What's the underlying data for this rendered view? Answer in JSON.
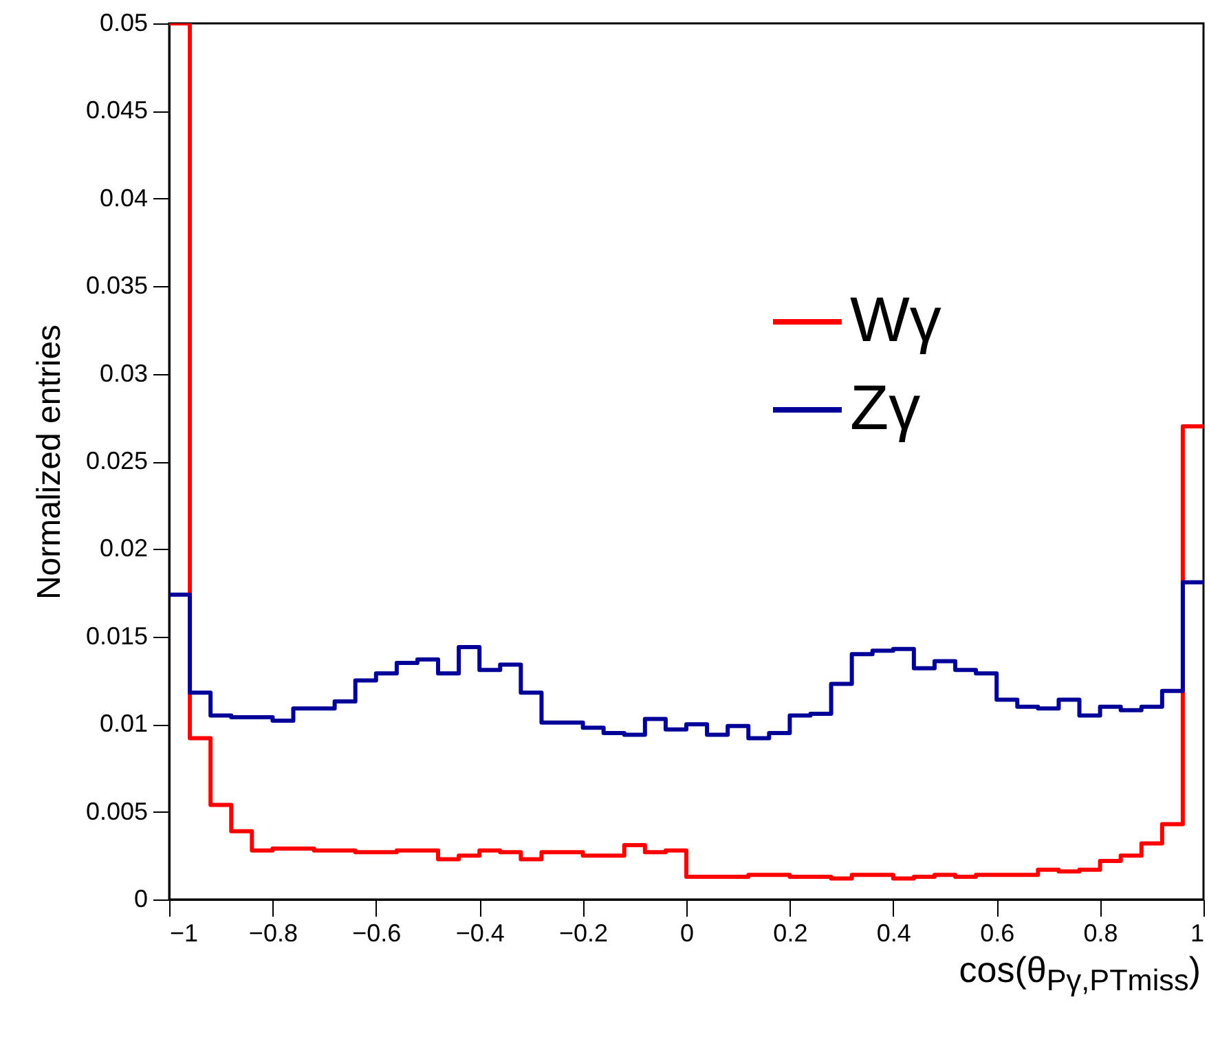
{
  "chart_data": {
    "type": "histogram",
    "xlabel": "cos(θ$_{Pγ,PTmiss}$)",
    "ylabel": "Normalized entries",
    "bins": [
      -1,
      -0.96,
      -0.92,
      -0.88,
      -0.84,
      -0.8,
      -0.76,
      -0.72,
      -0.68,
      -0.64,
      -0.6,
      -0.56,
      -0.52,
      -0.48,
      -0.44,
      -0.4,
      -0.36,
      -0.32,
      -0.28,
      -0.24,
      -0.2,
      -0.16,
      -0.12,
      -0.08,
      -0.04,
      0,
      0.04,
      0.08,
      0.12,
      0.16,
      0.2,
      0.24,
      0.28,
      0.32,
      0.36,
      0.4,
      0.44,
      0.48,
      0.52,
      0.56,
      0.6,
      0.64,
      0.68,
      0.72,
      0.76,
      0.8,
      0.84,
      0.88,
      0.92,
      0.96,
      1
    ],
    "series": [
      {
        "name": "Wγ",
        "color": "#ff0000",
        "values": [
          0.05,
          0.0092,
          0.0054,
          0.0039,
          0.0028,
          0.0029,
          0.0029,
          0.0028,
          0.0028,
          0.0027,
          0.0027,
          0.0028,
          0.0028,
          0.0023,
          0.0025,
          0.0028,
          0.0027,
          0.0023,
          0.0027,
          0.0027,
          0.0025,
          0.0025,
          0.0031,
          0.0027,
          0.0028,
          0.0013,
          0.0013,
          0.0013,
          0.0014,
          0.0014,
          0.0013,
          0.0013,
          0.0012,
          0.0014,
          0.0014,
          0.0012,
          0.0013,
          0.0014,
          0.0013,
          0.0014,
          0.0014,
          0.0014,
          0.0017,
          0.0016,
          0.0017,
          0.0022,
          0.0025,
          0.0032,
          0.0043,
          0.027
        ]
      },
      {
        "name": "Zγ",
        "color": "#000099",
        "values": [
          0.0174,
          0.0118,
          0.0105,
          0.0104,
          0.0104,
          0.0102,
          0.0109,
          0.0109,
          0.0113,
          0.0125,
          0.0129,
          0.0135,
          0.0137,
          0.0129,
          0.0144,
          0.0131,
          0.0134,
          0.0118,
          0.0101,
          0.0101,
          0.0098,
          0.0095,
          0.0094,
          0.0103,
          0.0097,
          0.01,
          0.0094,
          0.0099,
          0.0092,
          0.0095,
          0.0105,
          0.0106,
          0.0123,
          0.014,
          0.0142,
          0.0143,
          0.0132,
          0.0136,
          0.0131,
          0.0129,
          0.0114,
          0.011,
          0.0109,
          0.0114,
          0.0105,
          0.011,
          0.0108,
          0.011,
          0.0119,
          0.0181
        ]
      }
    ],
    "xlim": [
      -1,
      1
    ],
    "xticks": [
      -1,
      -0.8,
      -0.6,
      -0.4,
      -0.2,
      0,
      0.2,
      0.4,
      0.6,
      0.8,
      1
    ],
    "ylim": [
      0,
      0.05
    ],
    "yticks": [
      0,
      0.005,
      0.01,
      0.015,
      0.02,
      0.025,
      0.03,
      0.035,
      0.04,
      0.045,
      0.05
    ],
    "legend": "top right"
  }
}
